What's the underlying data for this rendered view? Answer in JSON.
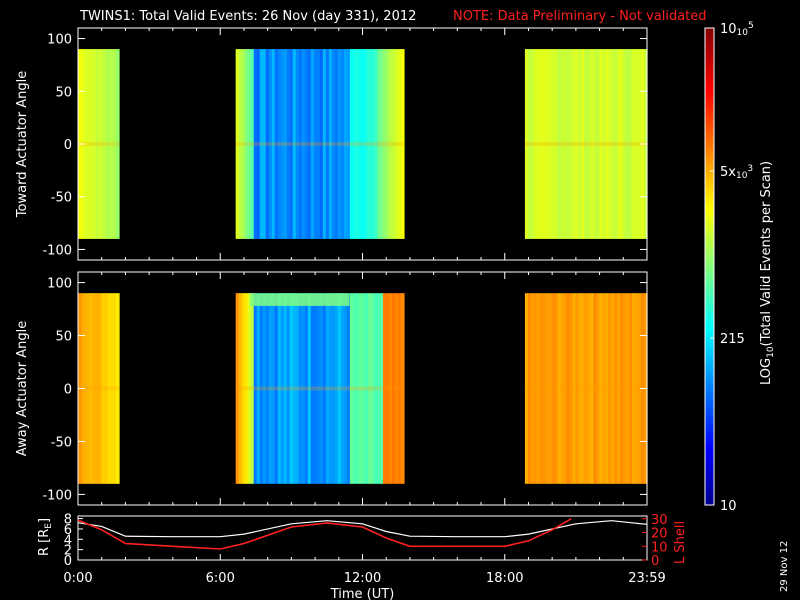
{
  "header": {
    "title": "TWINS1: Total Valid Events: 26 Nov (day 331), 2012",
    "note": "NOTE: Data Preliminary - Not validated"
  },
  "footer_date": "29 Nov 12",
  "chart_data": [
    {
      "type": "heatmap",
      "name": "toward",
      "ylabel": "Toward Actuator Angle",
      "ylim": [
        -110,
        110
      ],
      "yticks": [
        100,
        50,
        0,
        -50,
        -100
      ],
      "xlim": [
        0,
        24
      ],
      "data_blocks": [
        {
          "start_hr": 0.0,
          "end_hr": 1.73,
          "level": "green-yellow"
        },
        {
          "start_hr": 6.65,
          "end_hr": 13.75,
          "level": "blue (low) center, green-yellow edges"
        },
        {
          "start_hr": 18.85,
          "end_hr": 24.0,
          "level": "green-yellow"
        }
      ],
      "angle_range": [
        -90,
        90
      ]
    },
    {
      "type": "heatmap",
      "name": "away",
      "ylabel": "Away Actuator Angle",
      "ylim": [
        -110,
        110
      ],
      "yticks": [
        100,
        50,
        0,
        -50,
        -100
      ],
      "xlim": [
        0,
        24
      ],
      "data_blocks": [
        {
          "start_hr": 0.0,
          "end_hr": 1.73,
          "level": "yellow-orange"
        },
        {
          "start_hr": 6.65,
          "end_hr": 13.75,
          "level": "blue center, orange edges"
        },
        {
          "start_hr": 18.85,
          "end_hr": 24.0,
          "level": "orange"
        }
      ],
      "angle_range": [
        -90,
        90
      ]
    },
    {
      "type": "line",
      "name": "orbit",
      "ylabel_left": "R [R",
      "ylabel_left_sub": "E",
      "ylabel_left_end": "]",
      "ylabel_right": "L Shell",
      "yticks_left": [
        8,
        6,
        4,
        2,
        0
      ],
      "yticks_right": [
        30,
        20,
        10,
        0
      ],
      "ylim_left": [
        0,
        8.5
      ],
      "ylim_right": [
        0,
        32
      ],
      "xlim": [
        0,
        24
      ],
      "xticks": [
        "0:00",
        "6:00",
        "12:00",
        "18:00",
        "23:59"
      ],
      "xlabel": "Time (UT)",
      "series": [
        {
          "color": "#ffffff",
          "x": [
            0,
            1,
            2,
            4,
            6,
            7,
            9,
            10.5,
            12,
            13,
            14,
            16,
            18,
            19,
            21,
            22.5,
            24
          ],
          "y": [
            7.2,
            6.5,
            4.6,
            4.5,
            4.5,
            5.0,
            7.0,
            7.6,
            7.0,
            5.5,
            4.6,
            4.5,
            4.5,
            5.0,
            7.0,
            7.6,
            6.9
          ]
        },
        {
          "color": "#ff2020",
          "x": [
            0,
            1,
            2,
            4,
            6,
            7,
            9,
            10.5,
            12,
            13,
            14,
            16,
            18,
            19,
            20,
            20.8
          ],
          "y": [
            29,
            22,
            12,
            10,
            8,
            12,
            24,
            27,
            24,
            16,
            10,
            10,
            10,
            14,
            22,
            30
          ]
        }
      ]
    }
  ],
  "colorbar": {
    "label": "LOG",
    "label_sub": "10",
    "label_rest": "(Total Valid Events per Scan)",
    "ticks": [
      {
        "text": "10",
        "sup": "5",
        "frac": 0.0,
        "base": "10"
      },
      {
        "text": "5x",
        "sup": "3",
        "frac": 0.3,
        "base": "10"
      },
      {
        "text": "215",
        "sup": "",
        "frac": 0.65,
        "base": ""
      },
      {
        "text": "10",
        "sup": "",
        "frac": 1.0,
        "base": ""
      }
    ]
  }
}
